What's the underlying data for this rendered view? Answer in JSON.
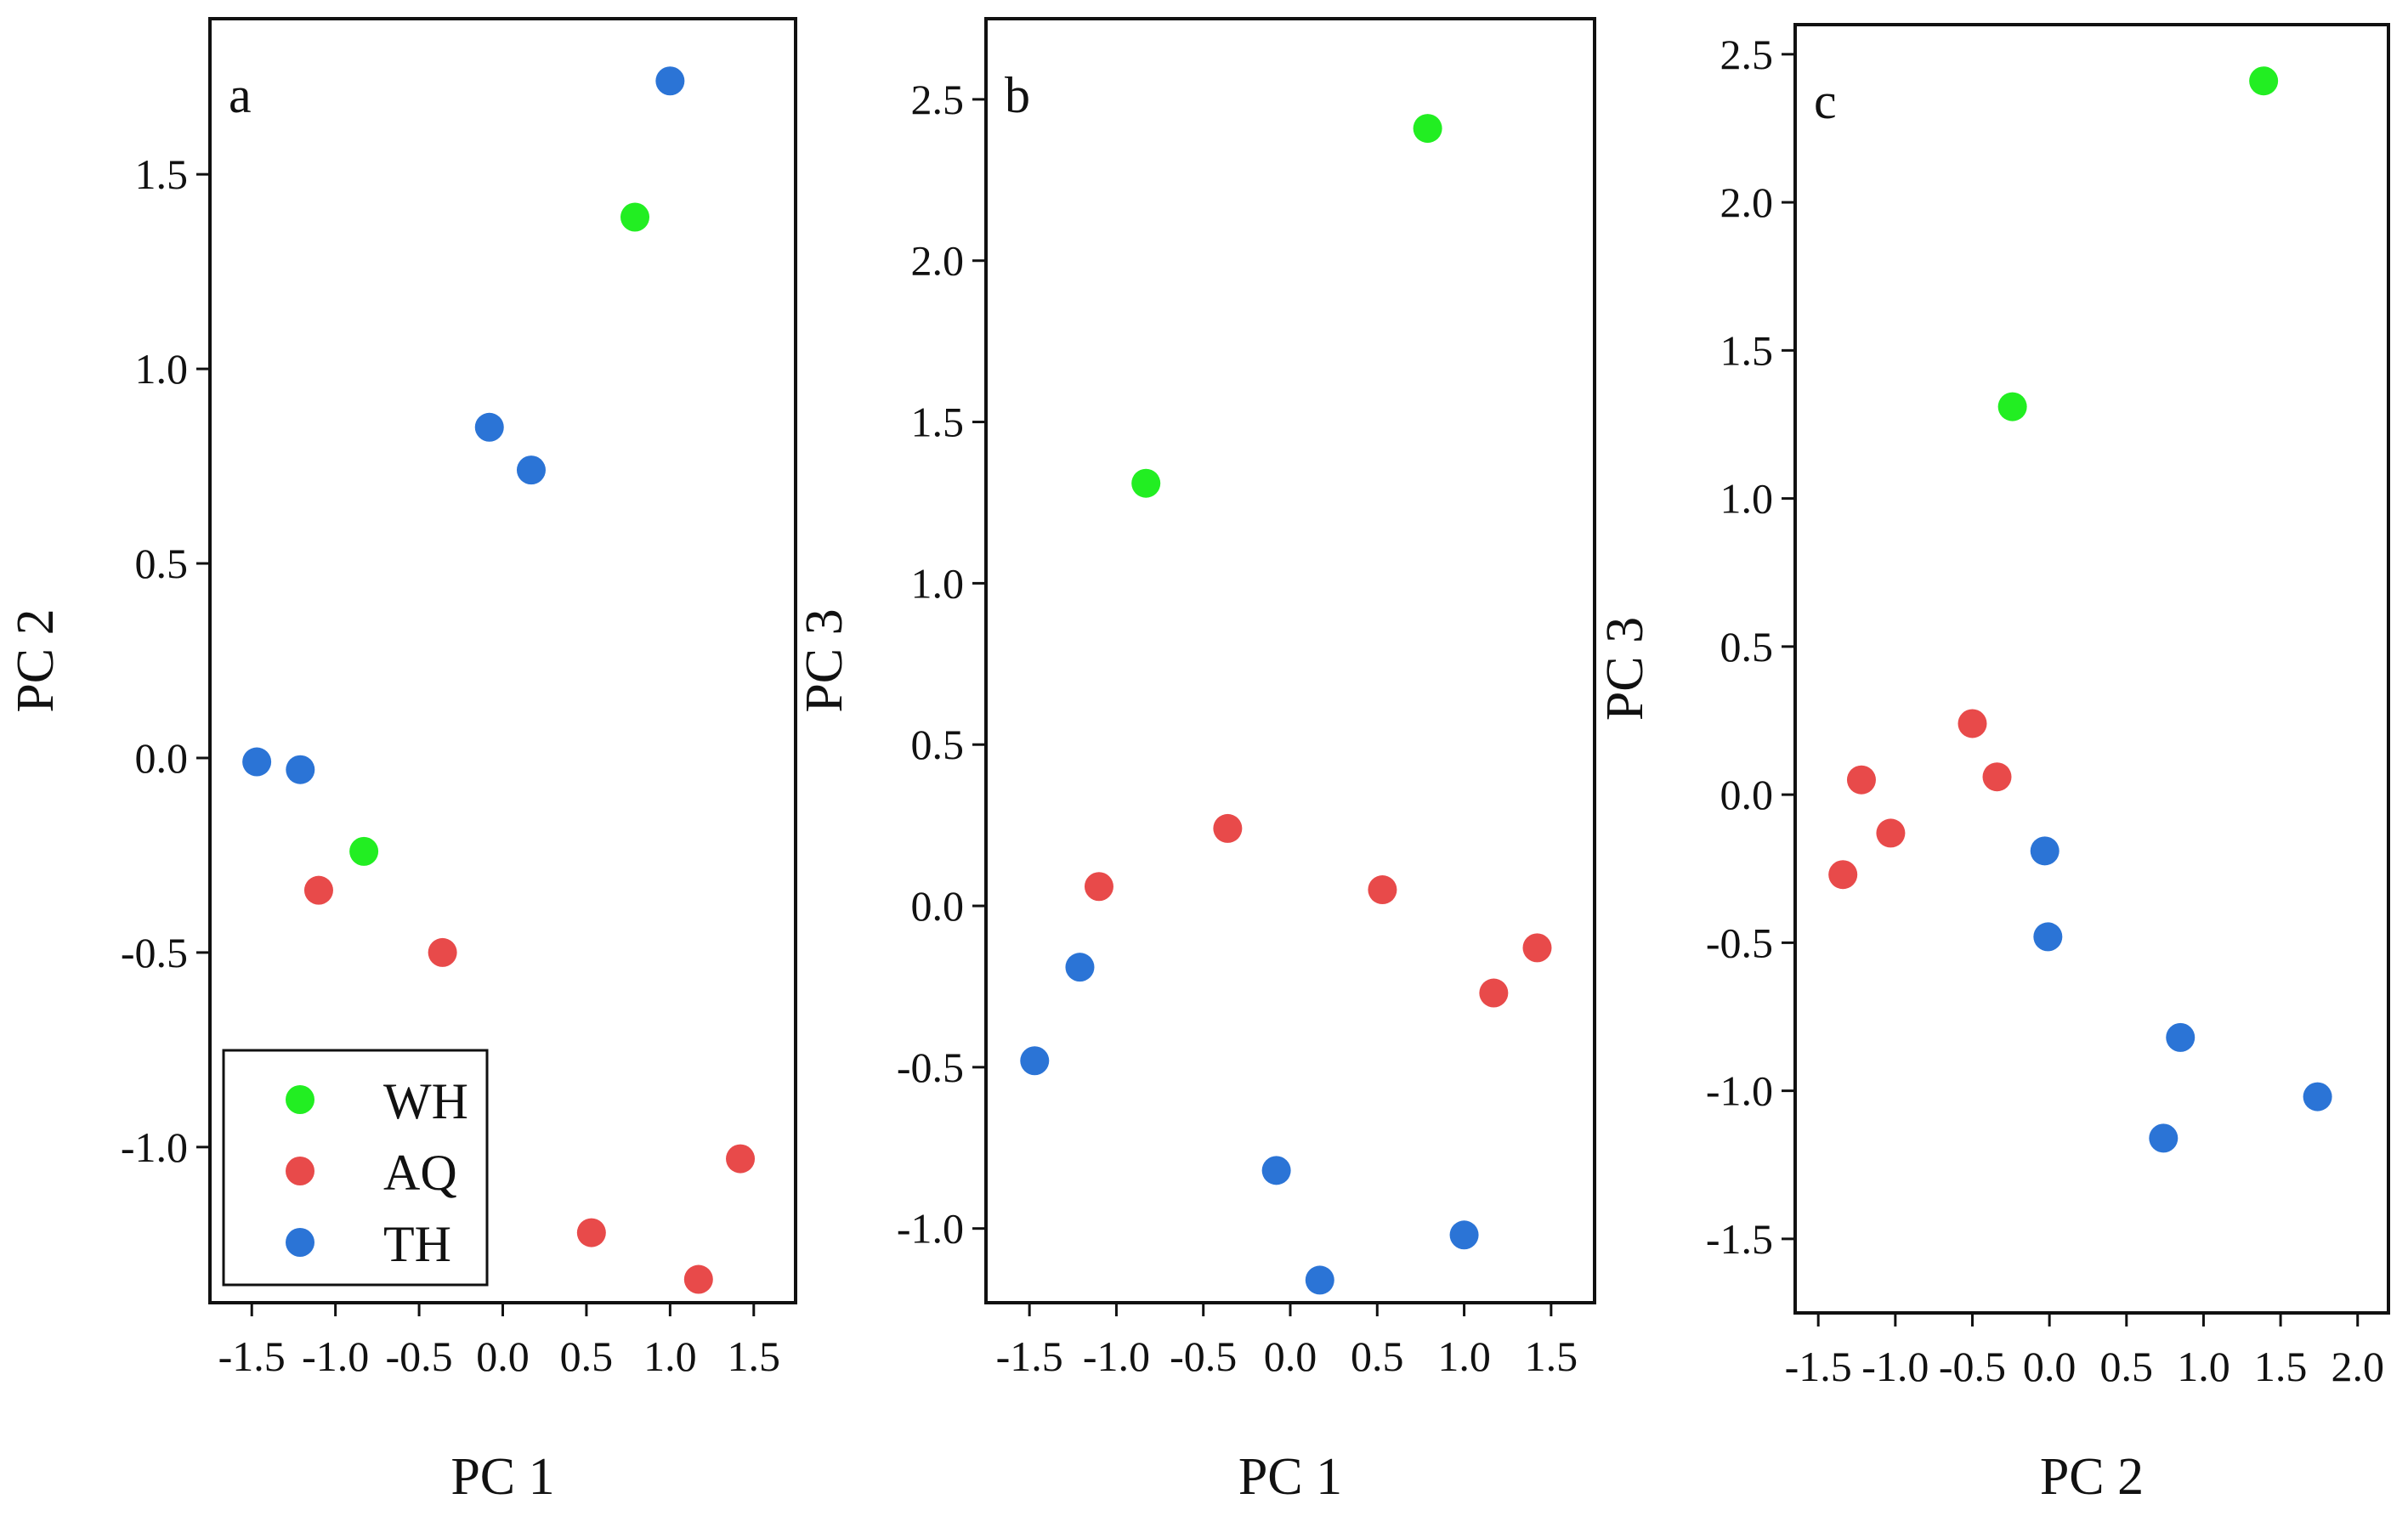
{
  "legend": [
    {
      "label": "WH",
      "color": "#22ee22"
    },
    {
      "label": "AQ",
      "color": "#e84a4a"
    },
    {
      "label": "TH",
      "color": "#2b74d6"
    }
  ],
  "chart_data": [
    {
      "type": "scatter",
      "panel_label": "a",
      "xlabel": "PC 1",
      "ylabel": "PC 2",
      "xlim": [
        -1.75,
        1.75
      ],
      "ylim": [
        -1.4,
        1.9
      ],
      "xticks": [
        -1.5,
        -1.0,
        -0.5,
        0.0,
        0.5,
        1.0,
        1.5
      ],
      "xtick_labels": [
        "-1.5",
        "-1.0",
        "-0.5",
        "0.0",
        "0.5",
        "1.0",
        "1.5"
      ],
      "yticks": [
        -1.0,
        -0.5,
        0.0,
        0.5,
        1.0,
        1.5
      ],
      "ytick_labels": [
        "-1.0",
        "-0.5",
        "0.0",
        "0.5",
        "1.0",
        "1.5"
      ],
      "legend_position": "bottom-left",
      "series": [
        {
          "name": "WH",
          "color": "#22ee22",
          "points": [
            [
              0.79,
              1.39
            ],
            [
              -0.83,
              -0.24
            ]
          ]
        },
        {
          "name": "AQ",
          "color": "#e84a4a",
          "points": [
            [
              -1.1,
              -0.34
            ],
            [
              -0.36,
              -0.5
            ],
            [
              0.53,
              -1.22
            ],
            [
              1.17,
              -1.34
            ],
            [
              1.42,
              -1.03
            ]
          ]
        },
        {
          "name": "TH",
          "color": "#2b74d6",
          "points": [
            [
              1.0,
              1.74
            ],
            [
              -0.08,
              0.85
            ],
            [
              0.17,
              0.74
            ],
            [
              -1.47,
              -0.01
            ],
            [
              -1.21,
              -0.03
            ]
          ]
        }
      ]
    },
    {
      "type": "scatter",
      "panel_label": "b",
      "xlabel": "PC 1",
      "ylabel": "PC 3",
      "xlim": [
        -1.75,
        1.75
      ],
      "ylim": [
        -1.23,
        2.75
      ],
      "xticks": [
        -1.5,
        -1.0,
        -0.5,
        0.0,
        0.5,
        1.0,
        1.5
      ],
      "xtick_labels": [
        "-1.5",
        "-1.0",
        "-0.5",
        "0.0",
        "0.5",
        "1.0",
        "1.5"
      ],
      "yticks": [
        -1.0,
        -0.5,
        0.0,
        0.5,
        1.0,
        1.5,
        2.0,
        2.5
      ],
      "ytick_labels": [
        "-1.0",
        "-0.5",
        "0.0",
        "0.5",
        "1.0",
        "1.5",
        "2.0",
        "2.5"
      ],
      "series": [
        {
          "name": "WH",
          "color": "#22ee22",
          "points": [
            [
              0.79,
              2.41
            ],
            [
              -0.83,
              1.31
            ]
          ]
        },
        {
          "name": "AQ",
          "color": "#e84a4a",
          "points": [
            [
              -0.36,
              0.24
            ],
            [
              -1.1,
              0.06
            ],
            [
              0.53,
              0.05
            ],
            [
              1.42,
              -0.13
            ],
            [
              1.17,
              -0.27
            ]
          ]
        },
        {
          "name": "TH",
          "color": "#2b74d6",
          "points": [
            [
              -1.21,
              -0.19
            ],
            [
              -1.47,
              -0.48
            ],
            [
              -0.08,
              -0.82
            ],
            [
              1.0,
              -1.02
            ],
            [
              0.17,
              -1.16
            ]
          ]
        }
      ]
    },
    {
      "type": "scatter",
      "panel_label": "c",
      "xlabel": "PC 2",
      "ylabel": "PC 3",
      "xlim": [
        -1.65,
        2.2
      ],
      "ylim": [
        -1.75,
        2.6
      ],
      "xticks": [
        -1.5,
        -1.0,
        -0.5,
        0.0,
        0.5,
        1.0,
        1.5,
        2.0
      ],
      "xtick_labels": [
        "-1.5",
        "-1.0",
        "-0.5",
        "0.0",
        "0.5",
        "1.0",
        "1.5",
        "2.0"
      ],
      "yticks": [
        -1.5,
        -1.0,
        -0.5,
        0.0,
        0.5,
        1.0,
        1.5,
        2.0,
        2.5
      ],
      "ytick_labels": [
        "-1.5",
        "-1.0",
        "-0.5",
        "0.0",
        "0.5",
        "1.0",
        "1.5",
        "2.0",
        "2.5"
      ],
      "series": [
        {
          "name": "WH",
          "color": "#22ee22",
          "points": [
            [
              1.39,
              2.41
            ],
            [
              -0.24,
              1.31
            ]
          ]
        },
        {
          "name": "AQ",
          "color": "#e84a4a",
          "points": [
            [
              -0.5,
              0.24
            ],
            [
              -0.34,
              0.06
            ],
            [
              -1.22,
              0.05
            ],
            [
              -1.03,
              -0.13
            ],
            [
              -1.34,
              -0.27
            ]
          ]
        },
        {
          "name": "TH",
          "color": "#2b74d6",
          "points": [
            [
              -0.03,
              -0.19
            ],
            [
              -0.01,
              -0.48
            ],
            [
              0.85,
              -0.82
            ],
            [
              1.74,
              -1.02
            ],
            [
              0.74,
              -1.16
            ]
          ]
        }
      ]
    }
  ]
}
